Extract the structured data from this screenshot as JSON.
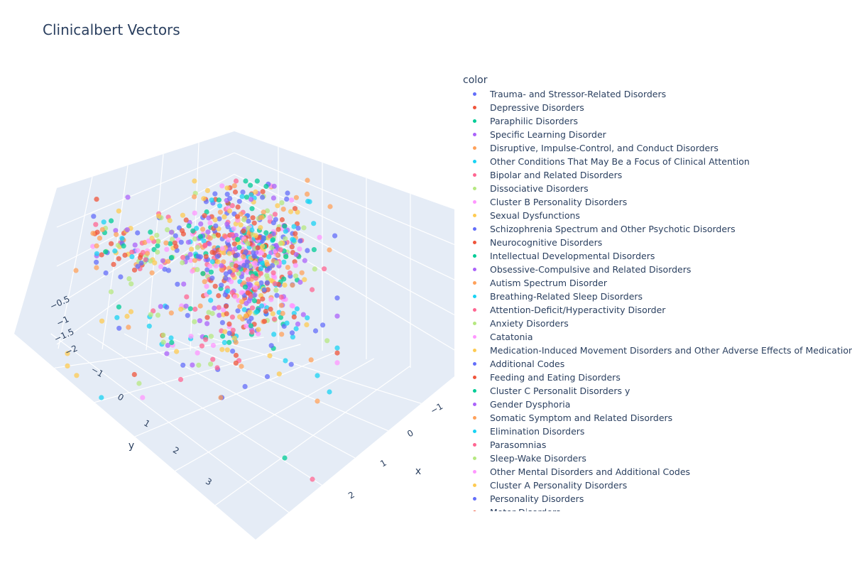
{
  "chart_data": {
    "type": "scatter",
    "title": "Clinicalbert Vectors",
    "legend_title": "color",
    "legend_position": "right",
    "axes": {
      "x": {
        "label": "x",
        "ticks": [
          "−1",
          "0",
          "1",
          "2"
        ]
      },
      "y": {
        "label": "y",
        "ticks": [
          "−1",
          "0",
          "1",
          "2",
          "3"
        ]
      },
      "z": {
        "label": "",
        "ticks": [
          "−2",
          "−1.5",
          "−1",
          "−0.5"
        ]
      }
    },
    "grid": true,
    "series": [
      {
        "name": "Trauma- and Stressor-Related Disorders",
        "color": "#636efa"
      },
      {
        "name": "Depressive Disorders",
        "color": "#ef553b"
      },
      {
        "name": "Paraphilic Disorders",
        "color": "#00cc96"
      },
      {
        "name": "Specific Learning Disorder",
        "color": "#ab63fa"
      },
      {
        "name": "Disruptive, Impulse-Control, and Conduct Disorders",
        "color": "#ffa15a"
      },
      {
        "name": "Other Conditions That May Be a Focus of Clinical Attention",
        "color": "#19d3f3"
      },
      {
        "name": "Bipolar and Related Disorders",
        "color": "#ff6692"
      },
      {
        "name": "Dissociative Disorders",
        "color": "#b6e880"
      },
      {
        "name": "Cluster B Personality Disorders",
        "color": "#ff97ff"
      },
      {
        "name": "Sexual Dysfunctions",
        "color": "#fecb52"
      },
      {
        "name": "Schizophrenia Spectrum and Other Psychotic Disorders",
        "color": "#636efa"
      },
      {
        "name": "Neurocognitive Disorders",
        "color": "#ef553b"
      },
      {
        "name": "Intellectual Developmental Disorders",
        "color": "#00cc96"
      },
      {
        "name": "Obsessive-Compulsive and Related Disorders",
        "color": "#ab63fa"
      },
      {
        "name": "Autism Spectrum Disorder",
        "color": "#ffa15a"
      },
      {
        "name": "Breathing-Related Sleep Disorders",
        "color": "#19d3f3"
      },
      {
        "name": "Attention-Deficit/Hyperactivity Disorder",
        "color": "#ff6692"
      },
      {
        "name": "Anxiety Disorders",
        "color": "#b6e880"
      },
      {
        "name": "Catatonia",
        "color": "#ff97ff"
      },
      {
        "name": "Medication-Induced Movement Disorders and Other Adverse Effects of Medication",
        "color": "#fecb52"
      },
      {
        "name": "Additional Codes",
        "color": "#636efa"
      },
      {
        "name": "Feeding and Eating Disorders",
        "color": "#ef553b"
      },
      {
        "name": "Cluster C Personalit Disorders y",
        "color": "#00cc96"
      },
      {
        "name": "Gender Dysphoria",
        "color": "#ab63fa"
      },
      {
        "name": "Somatic Symptom and Related Disorders",
        "color": "#ffa15a"
      },
      {
        "name": "Elimination Disorders",
        "color": "#19d3f3"
      },
      {
        "name": "Parasomnias",
        "color": "#ff6692"
      },
      {
        "name": "Sleep-Wake Disorders",
        "color": "#b6e880"
      },
      {
        "name": "Other Mental Disorders and Additional Codes",
        "color": "#ff97ff"
      },
      {
        "name": "Cluster A Personality Disorders",
        "color": "#fecb52"
      },
      {
        "name": "Personality Disorders",
        "color": "#636efa"
      },
      {
        "name": "Motor Disorders",
        "color": "#ef553b"
      }
    ],
    "point_count": 900
  }
}
